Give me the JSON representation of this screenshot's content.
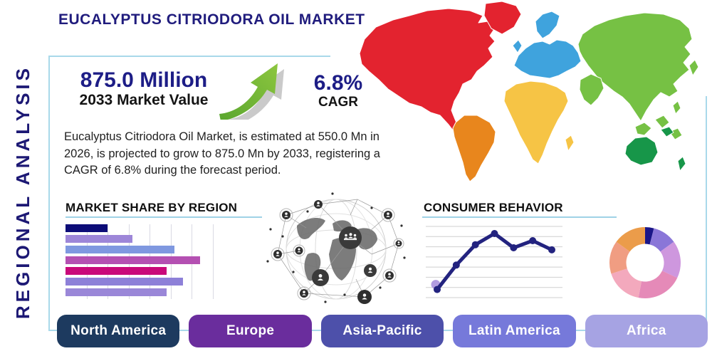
{
  "header": {
    "title": "EUCALYPTUS CITRIODORA OIL MARKET"
  },
  "side_label": "REGIONAL ANALYSIS",
  "kpi": {
    "value": "875.0 Million",
    "value_caption": "2033 Market Value",
    "cagr": "6.8%",
    "cagr_caption": "CAGR"
  },
  "description": "Eucalyptus Citriodora Oil Market, is estimated at 550.0 Mn in 2026, is projected to grow to 875.0 Mn by 2033, registering a CAGR of 6.8% during the forecast period.",
  "sections": {
    "market_share_title": "MARKET SHARE BY REGION",
    "consumer_behavior_title": "CONSUMER BEHAVIOR"
  },
  "region_buttons": [
    {
      "label": "North America",
      "color": "#1d3a5f"
    },
    {
      "label": "Europe",
      "color": "#6a2d9d"
    },
    {
      "label": "Asia-Pacific",
      "color": "#4d50aa"
    },
    {
      "label": "Latin America",
      "color": "#7679da"
    },
    {
      "label": "Africa",
      "color": "#a6a3e3"
    }
  ],
  "chart_data": [
    {
      "type": "bar",
      "orientation": "horizontal",
      "title": "MARKET SHARE BY REGION",
      "categories": null,
      "values": [
        2.0,
        3.2,
        5.2,
        6.4,
        4.8,
        5.6,
        4.8
      ],
      "xlim": [
        0,
        7.05
      ],
      "gridlines": [
        1,
        2,
        3,
        4,
        5,
        6,
        7
      ],
      "bar_colors": [
        "#0d0d78",
        "#9d86d8",
        "#7f98e0",
        "#b450b2",
        "#c9097a",
        "#8d80d8",
        "#9a87d8"
      ],
      "axis_tick_labels_shown": false
    },
    {
      "type": "line",
      "title": "CONSUMER BEHAVIOR",
      "x": [
        1,
        2,
        3,
        4,
        5,
        6,
        7
      ],
      "values": [
        0.8,
        3.2,
        5.2,
        6.3,
        4.9,
        5.6,
        4.7
      ],
      "ylim": [
        0,
        7
      ],
      "gridline_count": 8,
      "line_color": "#23237f",
      "marker_color": "#23237f",
      "first_point_highlight_color": "#b29ce0",
      "axis_tick_labels_shown": false
    },
    {
      "type": "pie",
      "donut": true,
      "start_angle_deg_from_top": 0,
      "direction": "clockwise",
      "slices": [
        {
          "value": 4,
          "color": "#1b1688"
        },
        {
          "value": 11,
          "color": "#8a76d8"
        },
        {
          "value": 17,
          "color": "#ce97de"
        },
        {
          "value": 21,
          "color": "#e58ab8"
        },
        {
          "value": 17,
          "color": "#f3a9bd"
        },
        {
          "value": 15,
          "color": "#f09d82"
        },
        {
          "value": 15,
          "color": "#eb9c4a"
        }
      ]
    }
  ],
  "map_regions": {
    "north_america": "#e3232f",
    "south_america": "#e8861d",
    "europe": "#3fa3dd",
    "africa": "#f6c445",
    "asia": "#76c144",
    "oceania": "#179649"
  },
  "accents": {
    "frame_border": "#a9d9ea",
    "navy_text": "#1d1d86",
    "growth_arrow_green": "#72bf44"
  }
}
